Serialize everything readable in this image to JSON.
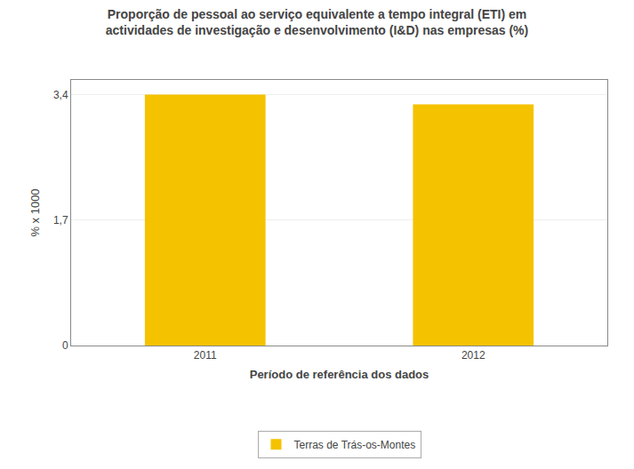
{
  "chart_data": {
    "type": "bar",
    "title": "Proporção de pessoal ao serviço equivalente a tempo integral (ETI) em\nactividades de investigação e desenvolvimento (I&D) nas empresas (%)",
    "xlabel": "Período de referência dos dados",
    "ylabel": "% x 1000",
    "categories": [
      "2011",
      "2012"
    ],
    "series": [
      {
        "name": "Terras de Trás-os-Montes",
        "color": "#F5C200",
        "values": [
          3.4,
          3.27
        ]
      }
    ],
    "ylim": [
      0,
      3.6
    ],
    "yticks": [
      0,
      {
        "value": 1.7,
        "label": "1,7"
      },
      {
        "value": 3.4,
        "label": "3,4"
      }
    ],
    "grid": true,
    "legend": "bottom"
  }
}
